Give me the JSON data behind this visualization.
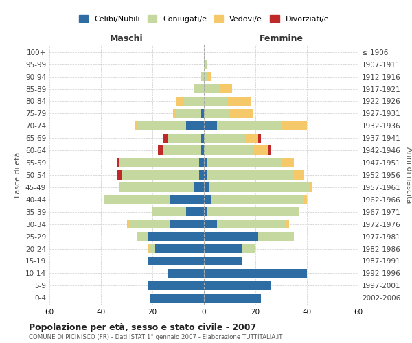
{
  "age_groups": [
    "0-4",
    "5-9",
    "10-14",
    "15-19",
    "20-24",
    "25-29",
    "30-34",
    "35-39",
    "40-44",
    "45-49",
    "50-54",
    "55-59",
    "60-64",
    "65-69",
    "70-74",
    "75-79",
    "80-84",
    "85-89",
    "90-94",
    "95-99",
    "100+"
  ],
  "birth_years": [
    "2002-2006",
    "1997-2001",
    "1992-1996",
    "1987-1991",
    "1982-1986",
    "1977-1981",
    "1972-1976",
    "1967-1971",
    "1962-1966",
    "1957-1961",
    "1952-1956",
    "1947-1951",
    "1942-1946",
    "1937-1941",
    "1932-1936",
    "1927-1931",
    "1922-1926",
    "1917-1921",
    "1912-1916",
    "1907-1911",
    "≤ 1906"
  ],
  "maschi": {
    "celibi": [
      21,
      22,
      14,
      22,
      19,
      22,
      13,
      7,
      13,
      4,
      2,
      2,
      1,
      1,
      7,
      1,
      0,
      0,
      0,
      0,
      0
    ],
    "coniugati": [
      0,
      0,
      0,
      0,
      2,
      4,
      16,
      13,
      26,
      29,
      30,
      31,
      15,
      13,
      19,
      10,
      8,
      4,
      1,
      0,
      0
    ],
    "vedovi": [
      0,
      0,
      0,
      0,
      1,
      0,
      1,
      0,
      0,
      0,
      0,
      0,
      0,
      0,
      1,
      1,
      3,
      0,
      0,
      0,
      0
    ],
    "divorziati": [
      0,
      0,
      0,
      0,
      0,
      0,
      0,
      0,
      0,
      0,
      2,
      1,
      2,
      2,
      0,
      0,
      0,
      0,
      0,
      0,
      0
    ]
  },
  "femmine": {
    "nubili": [
      22,
      26,
      40,
      15,
      15,
      21,
      5,
      1,
      3,
      2,
      1,
      1,
      0,
      0,
      5,
      0,
      0,
      0,
      0,
      0,
      0
    ],
    "coniugate": [
      0,
      0,
      0,
      0,
      5,
      14,
      27,
      36,
      36,
      39,
      34,
      29,
      19,
      16,
      25,
      10,
      9,
      6,
      1,
      1,
      0
    ],
    "vedove": [
      0,
      0,
      0,
      0,
      0,
      0,
      1,
      0,
      1,
      1,
      4,
      5,
      6,
      5,
      10,
      9,
      9,
      5,
      2,
      0,
      0
    ],
    "divorziate": [
      0,
      0,
      0,
      0,
      0,
      0,
      0,
      0,
      0,
      0,
      0,
      0,
      1,
      1,
      0,
      0,
      0,
      0,
      0,
      0,
      0
    ]
  },
  "colors": {
    "celibi": "#2E6DA4",
    "coniugati": "#C5D8A0",
    "vedovi": "#F5C96A",
    "divorziati": "#C0292A"
  },
  "title": "Popolazione per età, sesso e stato civile - 2007",
  "subtitle": "COMUNE DI PICINISCO (FR) - Dati ISTAT 1° gennaio 2007 - Elaborazione TUTTITALIA.IT",
  "ylabel": "Fasce di età",
  "ylabel2": "Anni di nascita",
  "xlabel_maschi": "Maschi",
  "xlabel_femmine": "Femmine",
  "legend_labels": [
    "Celibi/Nubili",
    "Coniugati/e",
    "Vedovi/e",
    "Divorziati/e"
  ],
  "xlim": 60,
  "bg_color": "#ffffff",
  "grid_color": "#cccccc"
}
